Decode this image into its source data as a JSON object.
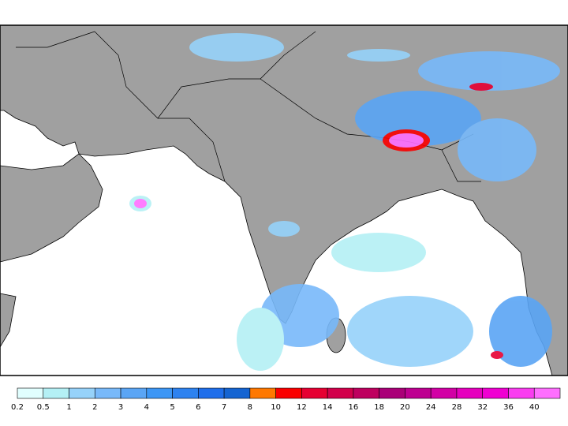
{
  "legend": {
    "labels": [
      0.2,
      0.5,
      1,
      2,
      3,
      4,
      5,
      6,
      7,
      8,
      10,
      12,
      14,
      16,
      18,
      20,
      24,
      28,
      32,
      36,
      40
    ],
    "colors": [
      "#e1ffff",
      "#b4f0f5",
      "#96d2fa",
      "#78b9fa",
      "#5aa5f5",
      "#3c96f5",
      "#2d82f0",
      "#1e6eeb",
      "#1464d2",
      "#ff7800",
      "#fa0000",
      "#e60032",
      "#d2004b",
      "#be005f",
      "#aa0078",
      "#be0091",
      "#d200a5",
      "#e600be",
      "#f000d2",
      "#fa3cf0",
      "#ff6eff"
    ]
  }
}
